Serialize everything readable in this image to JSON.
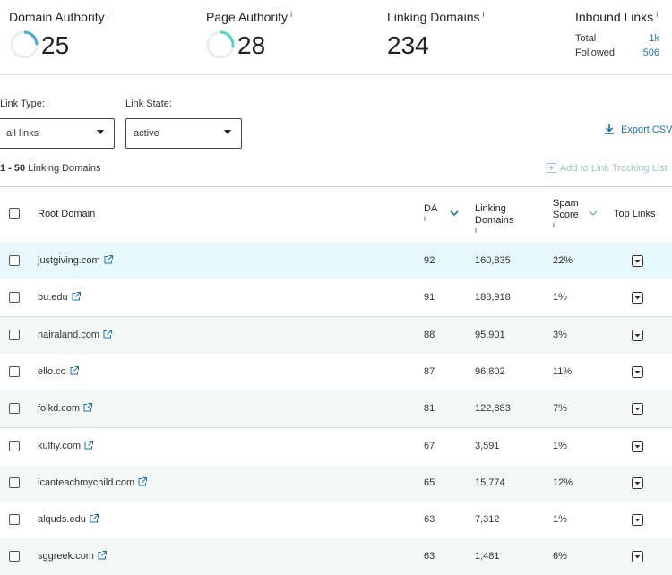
{
  "metrics": [
    {
      "label": "Domain Authority",
      "info": "i",
      "value": 25
    },
    {
      "label": "Page Authority",
      "info": "i",
      "value": 28
    },
    {
      "label": "Linking Domains",
      "info": "i",
      "value": 234
    }
  ],
  "inbound": {
    "label": "Inbound Links",
    "info": "i",
    "rows": [
      [
        "Total",
        "1k"
      ],
      [
        "Followed",
        "506"
      ]
    ]
  },
  "filters": [
    {
      "label": "Link Type:",
      "value": "all links"
    },
    {
      "label": "Link State:",
      "value": "active"
    }
  ],
  "export": "Export CSV",
  "count": {
    "range": "1 - 50",
    "label": "Linking Domains"
  },
  "add_to_list": "Add to Link Tracking List",
  "table": {
    "headers": [
      {
        "label": "Root Domain"
      },
      {
        "label": "DA",
        "info": "i"
      },
      {
        "label": "Linking Domains",
        "info": "i"
      },
      {
        "label": "Spam Score",
        "info": "i"
      },
      {
        "label": "Top Links"
      }
    ],
    "rows": [
      [
        "justgiving.com",
        92,
        "160,835",
        "22%"
      ],
      [
        "bu.edu",
        91,
        "188,918",
        "1%"
      ],
      [
        "nairaland.com",
        88,
        "95,901",
        "3%"
      ],
      [
        "ello.co",
        87,
        "96,802",
        "11%"
      ],
      [
        "folkd.com",
        81,
        "122,883",
        "7%"
      ],
      [
        "kulfiy.com",
        67,
        "3,591",
        "1%"
      ],
      [
        "icanteachmychild.com",
        65,
        "15,774",
        "12%"
      ],
      [
        "alquds.edu",
        63,
        "7,312",
        "1%"
      ],
      [
        "sggreek.com",
        63,
        "1,481",
        "6%"
      ]
    ]
  }
}
